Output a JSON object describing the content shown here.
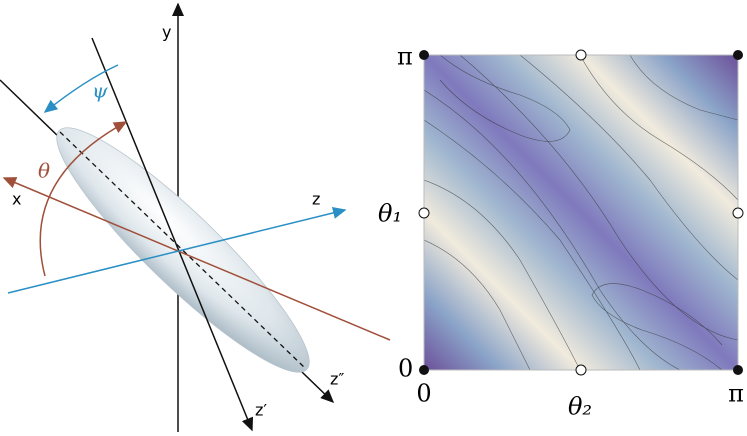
{
  "diagram": {
    "labels": {
      "y": "y",
      "psi": "ψ",
      "theta": "θ",
      "x": "x",
      "z": "z",
      "z_double_prime": "z″",
      "z_prime": "z′"
    }
  },
  "plot": {
    "y_top": "π",
    "y_label": "θ₁",
    "y_bottom": "0",
    "x_left": "0",
    "x_label": "θ₂",
    "x_right": "π"
  }
}
